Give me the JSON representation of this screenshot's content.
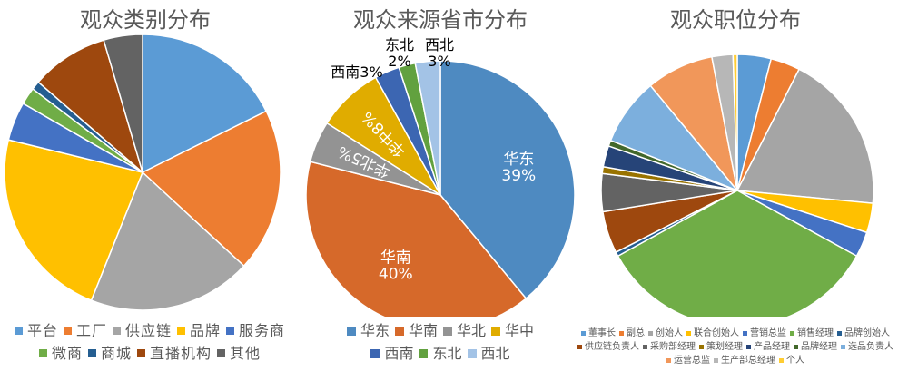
{
  "chart_data": [
    {
      "type": "pie",
      "title": "观众类别分布",
      "categories": [
        "平台",
        "工厂",
        "供应链",
        "品牌",
        "服务商",
        "微商",
        "商城",
        "直播机构",
        "其他"
      ],
      "values": [
        17.5,
        19,
        19,
        22.5,
        4.5,
        2,
        1,
        9,
        4.5
      ],
      "colors": [
        "#5B9BD5",
        "#ED7D31",
        "#A5A5A5",
        "#FFC000",
        "#4472C4",
        "#70AD47",
        "#255E91",
        "#9E480E",
        "#636363"
      ],
      "legend": "bottom"
    },
    {
      "type": "pie",
      "title": "观众来源省市分布",
      "categories": [
        "华东",
        "华南",
        "华北",
        "华中",
        "西南",
        "东北",
        "西北"
      ],
      "values": [
        39,
        40,
        5,
        8,
        3,
        2,
        3
      ],
      "data_labels": [
        "华东\n39%",
        "华南\n40%",
        "华北5%",
        "华中8%",
        "西南3%",
        "东北\n2%",
        "西北\n3%"
      ],
      "colors": [
        "#4E8AC1",
        "#D6692A",
        "#939393",
        "#E0AC00",
        "#3C66B2",
        "#62A13F",
        "#A3C3E6"
      ],
      "legend": "bottom"
    },
    {
      "type": "pie",
      "title": "观众职位分布",
      "categories": [
        "董事长",
        "副总",
        "创始人",
        "联合创始人",
        "营销总监",
        "销售经理",
        "品牌创始人",
        "供应链负责人",
        "采购部经理",
        "策划经理",
        "产品经理",
        "品牌经理",
        "选品负责人",
        "运营总监",
        "生产部总经理",
        "个人"
      ],
      "values": [
        4,
        3.5,
        19,
        3.5,
        3,
        34,
        0.5,
        5,
        4.5,
        0.8,
        2.5,
        0.7,
        8,
        8,
        2.5,
        0.5
      ],
      "colors": [
        "#5B9BD5",
        "#ED7D31",
        "#A5A5A5",
        "#FFC000",
        "#4472C4",
        "#70AD47",
        "#255E91",
        "#9E480E",
        "#636363",
        "#997300",
        "#264478",
        "#43682B",
        "#7CAFDD",
        "#F1975A",
        "#B7B7B7",
        "#FFCD33"
      ],
      "legend": "bottom"
    }
  ]
}
